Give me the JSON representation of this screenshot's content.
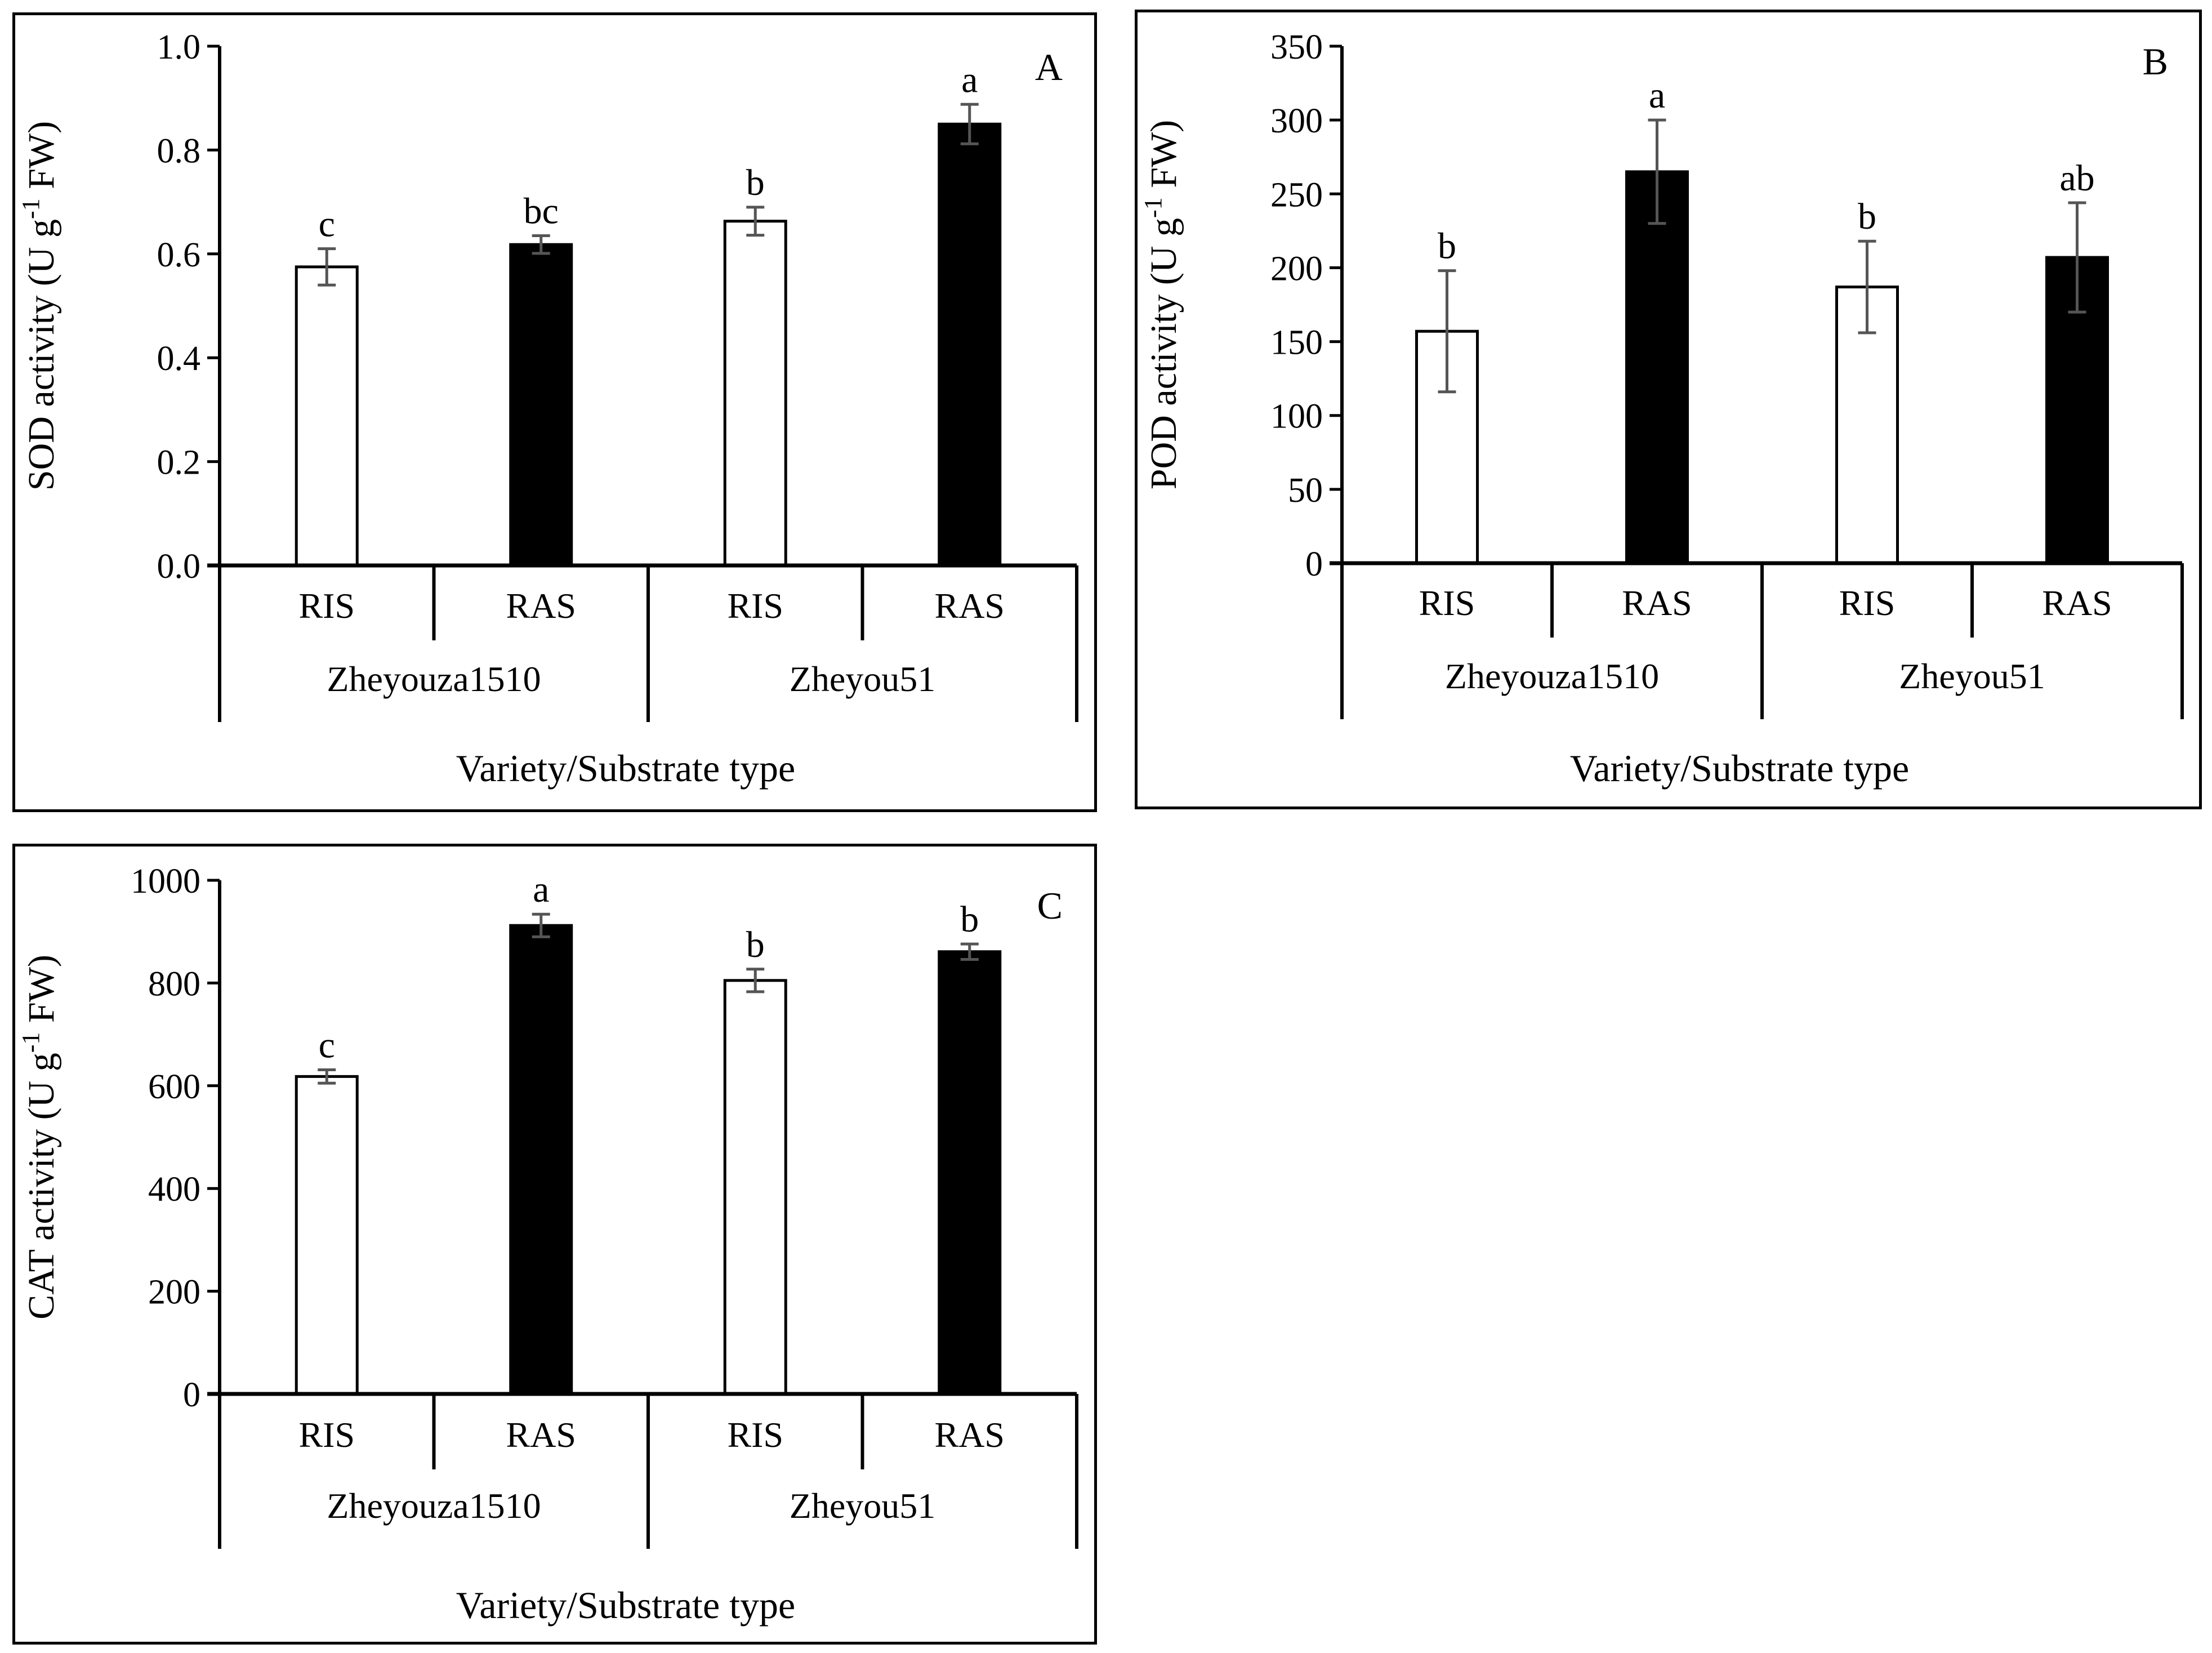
{
  "colors": {
    "ris_fill": "#ffffff",
    "ras_fill": "#000000",
    "error_bar": "#555555",
    "axis": "#000000"
  },
  "panels": [
    {
      "letter": "A",
      "ylabel_main": "SOD activity (U g",
      "ylabel_sup": "-1",
      "ylabel_tail": " FW)",
      "xlabel": "Variety/Substrate type",
      "chart_data": {
        "type": "bar",
        "ylim": [
          0,
          1.0
        ],
        "yticks": [
          "0.0",
          "0.2",
          "0.4",
          "0.6",
          "0.8",
          "1.0"
        ],
        "ytick_values": [
          0,
          0.2,
          0.4,
          0.6,
          0.8,
          1.0
        ],
        "categories": [
          "RIS",
          "RAS",
          "RIS",
          "RAS"
        ],
        "groups": [
          "Zheyouza1510",
          "Zheyou51"
        ],
        "values": [
          0.575,
          0.618,
          0.663,
          0.85
        ],
        "errors": [
          0.035,
          0.017,
          0.027,
          0.038
        ],
        "letters": [
          "c",
          "bc",
          "b",
          "a"
        ],
        "fills": [
          "ris",
          "ras",
          "ris",
          "ras"
        ]
      }
    },
    {
      "letter": "B",
      "ylabel_main": "POD activity (U g",
      "ylabel_sup": "-1",
      "ylabel_tail": "  FW)",
      "xlabel": "Variety/Substrate type",
      "chart_data": {
        "type": "bar",
        "ylim": [
          0,
          350
        ],
        "yticks": [
          "0",
          "50",
          "100",
          "150",
          "200",
          "250",
          "300",
          "350"
        ],
        "ytick_values": [
          0,
          50,
          100,
          150,
          200,
          250,
          300,
          350
        ],
        "categories": [
          "RIS",
          "RAS",
          "RIS",
          "RAS"
        ],
        "groups": [
          "Zheyouza1510",
          "Zheyou51"
        ],
        "values": [
          157,
          265,
          187,
          207
        ],
        "errors": [
          41,
          35,
          31,
          37
        ],
        "letters": [
          "b",
          "a",
          "b",
          "ab"
        ],
        "fills": [
          "ris",
          "ras",
          "ris",
          "ras"
        ]
      }
    },
    {
      "letter": "C",
      "ylabel_main": "CAT activity  (U g",
      "ylabel_sup": "-1",
      "ylabel_tail": "  FW)",
      "xlabel": "Variety/Substrate type",
      "chart_data": {
        "type": "bar",
        "ylim": [
          0,
          1000
        ],
        "yticks": [
          "0",
          "200",
          "400",
          "600",
          "800",
          "1000"
        ],
        "ytick_values": [
          0,
          200,
          400,
          600,
          800,
          1000
        ],
        "categories": [
          "RIS",
          "RAS",
          "RIS",
          "RAS"
        ],
        "groups": [
          "Zheyouza1510",
          "Zheyou51"
        ],
        "values": [
          618,
          912,
          805,
          861
        ],
        "errors": [
          13,
          22,
          22,
          15
        ],
        "letters": [
          "c",
          "a",
          "b",
          "b"
        ],
        "fills": [
          "ris",
          "ras",
          "ris",
          "ras"
        ]
      }
    }
  ]
}
